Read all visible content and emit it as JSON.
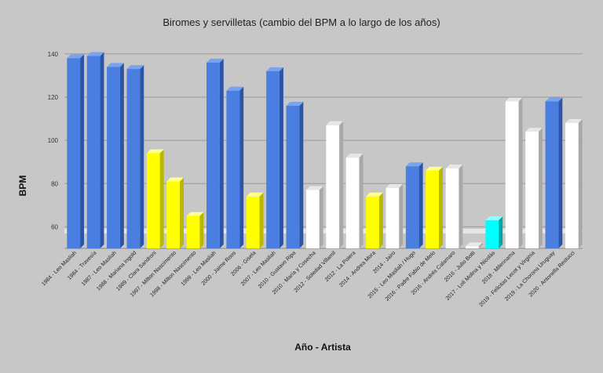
{
  "chart_data": {
    "type": "bar",
    "title": "Biromes y servilletas (cambio del BPM a lo largo de los años)",
    "xlabel": "Año - Artista",
    "ylabel": "BPM",
    "ylim": [
      50,
      145
    ],
    "yticks": [
      60,
      80,
      100,
      120,
      140
    ],
    "grid": true,
    "colors": {
      "blue": "#4a7ee0",
      "yellow": "#ffff00",
      "white": "#ffffff",
      "cyan": "#00ffff"
    },
    "categories": [
      "1984 - Leo Masliah",
      "1984 - Travesía",
      "1987 - Leo Masliah",
      "1988 - Mariana Ingold",
      "1989 - Clara Sandroni",
      "1997 - Milton Nascimento",
      "1998 - Milton Nascimento",
      "1999 - Leo Masliah",
      "2000 - Jaime Roos",
      "2006 - Gisela",
      "2007 - Leo Masliah",
      "2010 - Gustavo Ripa",
      "2010 - María y Cosecha",
      "2012 - Soledad Villamil",
      "2012 - La Poiera",
      "2014 - Andrea Mora",
      "2014 - Jairo",
      "2015 - Leo Masliah / Hugo",
      "2016 - Padre Fabio de Melo",
      "2016 - Andrés Calamaro",
      "2016 - Julio Botti",
      "2017 - Loli Molina y Nicolás",
      "2018 - Milennama",
      "2019 - Felicitas Lecot y Virginia",
      "2019 - La Chorona Uruguay",
      "2020 - Antonella Restucci"
    ],
    "values": [
      138,
      139,
      134,
      133,
      94,
      81,
      65,
      136,
      123,
      74,
      132,
      116,
      77,
      107,
      92,
      74,
      78,
      88,
      86,
      87,
      51,
      63,
      118,
      104,
      118,
      108
    ],
    "bar_colors": [
      "blue",
      "blue",
      "blue",
      "blue",
      "yellow",
      "yellow",
      "yellow",
      "blue",
      "blue",
      "yellow",
      "blue",
      "blue",
      "white",
      "white",
      "white",
      "yellow",
      "white",
      "blue",
      "yellow",
      "white",
      "white",
      "cyan",
      "white",
      "white",
      "blue",
      "white"
    ]
  }
}
